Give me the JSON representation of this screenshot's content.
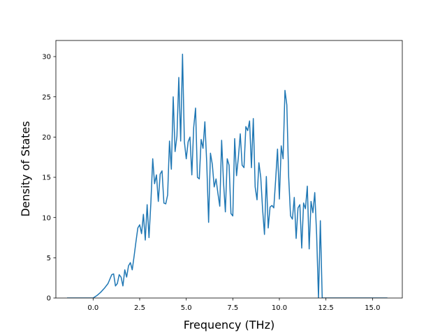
{
  "chart_data": {
    "type": "line",
    "title": "",
    "xlabel": "Frequency (THz)",
    "ylabel": "Density of States",
    "xlim": [
      -2.0,
      16.6
    ],
    "ylim": [
      0,
      32
    ],
    "xticks": [
      0.0,
      2.5,
      5.0,
      7.5,
      10.0,
      12.5,
      15.0
    ],
    "xtick_labels": [
      "0.0",
      "2.5",
      "5.0",
      "7.5",
      "10.0",
      "12.5",
      "15.0"
    ],
    "yticks": [
      0,
      5,
      10,
      15,
      20,
      25,
      30
    ],
    "ytick_labels": [
      "0",
      "5",
      "10",
      "15",
      "20",
      "25",
      "30"
    ],
    "grid": false,
    "legend": "none",
    "line_color": "#1f77b4",
    "series": [
      {
        "x": [
          -1.4,
          0.0,
          0.2,
          0.4,
          0.6,
          0.8,
          1.0,
          1.1,
          1.2,
          1.3,
          1.4,
          1.5,
          1.6,
          1.7,
          1.8,
          1.9,
          2.0,
          2.1,
          2.2,
          2.3,
          2.4,
          2.5,
          2.6,
          2.7,
          2.8,
          2.9,
          3.0,
          3.1,
          3.2,
          3.3,
          3.4,
          3.5,
          3.6,
          3.7,
          3.8,
          3.9,
          4.0,
          4.1,
          4.2,
          4.3,
          4.4,
          4.5,
          4.6,
          4.7,
          4.8,
          4.9,
          5.0,
          5.1,
          5.2,
          5.3,
          5.4,
          5.5,
          5.6,
          5.7,
          5.8,
          5.9,
          6.0,
          6.1,
          6.2,
          6.3,
          6.4,
          6.5,
          6.6,
          6.7,
          6.8,
          6.9,
          7.0,
          7.1,
          7.2,
          7.3,
          7.4,
          7.5,
          7.6,
          7.7,
          7.8,
          7.9,
          8.0,
          8.1,
          8.2,
          8.3,
          8.4,
          8.5,
          8.6,
          8.7,
          8.8,
          8.9,
          9.0,
          9.1,
          9.2,
          9.3,
          9.4,
          9.5,
          9.6,
          9.7,
          9.8,
          9.9,
          10.0,
          10.1,
          10.2,
          10.3,
          10.4,
          10.5,
          10.6,
          10.7,
          10.8,
          10.9,
          11.0,
          11.1,
          11.2,
          11.3,
          11.4,
          11.5,
          11.6,
          11.7,
          11.8,
          11.9,
          12.0,
          12.1,
          12.2,
          12.3,
          12.4,
          13.0,
          15.8
        ],
        "y": [
          0,
          0,
          0.3,
          0.7,
          1.2,
          1.8,
          2.9,
          3.0,
          1.5,
          1.8,
          2.9,
          2.6,
          1.5,
          3.5,
          2.6,
          4.0,
          4.4,
          3.5,
          5.2,
          7.0,
          8.7,
          9.1,
          8.0,
          10.4,
          7.2,
          11.6,
          7.5,
          11.8,
          17.3,
          14.2,
          15.3,
          12.0,
          15.4,
          15.8,
          11.8,
          11.7,
          12.8,
          19.5,
          16.0,
          25.0,
          18.2,
          20.1,
          27.4,
          19.5,
          30.3,
          19.4,
          17.3,
          19.4,
          20.0,
          15.3,
          21.2,
          23.6,
          15.0,
          14.8,
          19.7,
          18.6,
          21.9,
          16.8,
          9.4,
          18.0,
          16.6,
          13.8,
          14.8,
          13.0,
          11.4,
          19.6,
          14.4,
          10.7,
          17.3,
          16.5,
          10.5,
          10.2,
          19.8,
          15.2,
          17.5,
          20.4,
          16.5,
          16.2,
          21.3,
          20.8,
          22.0,
          16.2,
          22.3,
          13.8,
          12.2,
          16.8,
          15.0,
          11.0,
          7.9,
          15.1,
          8.7,
          11.3,
          11.5,
          11.2,
          14.7,
          18.5,
          12.3,
          18.9,
          17.3,
          25.8,
          24.0,
          15.0,
          10.2,
          9.8,
          12.5,
          7.4,
          11.2,
          11.6,
          6.2,
          11.8,
          11.1,
          13.9,
          6.1,
          12.0,
          10.6,
          13.1,
          7.9,
          0,
          9.6,
          0,
          0,
          0,
          0
        ]
      }
    ]
  }
}
